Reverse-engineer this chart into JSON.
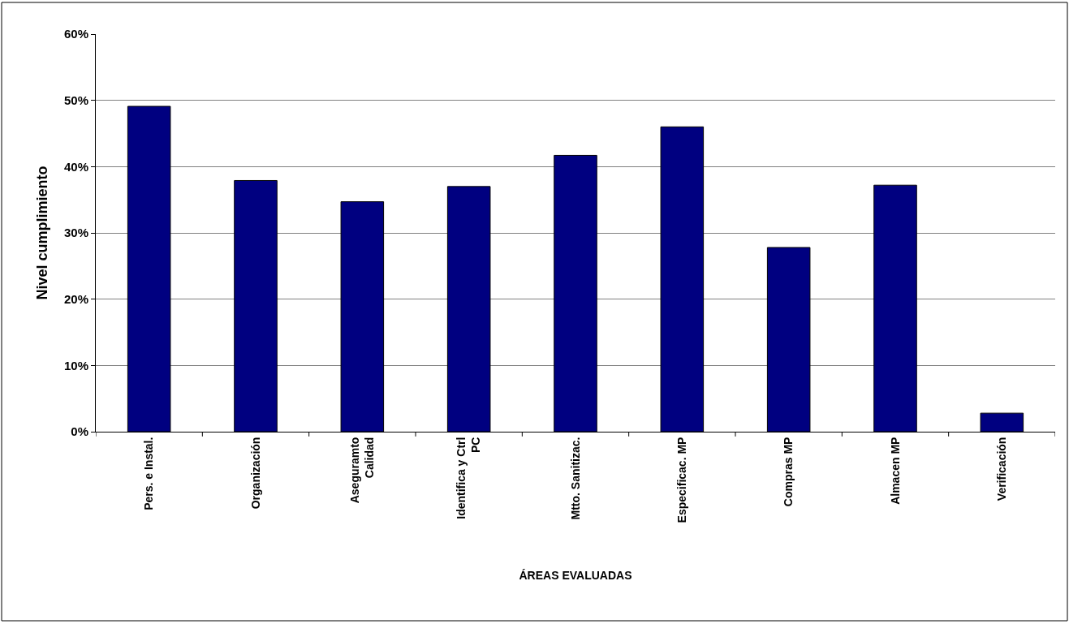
{
  "chart_data": {
    "type": "bar",
    "xlabel": "ÁREAS EVALUADAS",
    "ylabel": "Nivel cumplimiento",
    "categories": [
      "Pers. e Instal.",
      "Organización",
      "Aseguramto Calidad",
      "Identifica y Ctrl PC",
      "Mtto. Sanitizac.",
      "Especificac. MP",
      "Compras MP",
      "Almacen MP",
      "Verificación"
    ],
    "values": [
      49.1,
      37.9,
      34.7,
      37.0,
      41.7,
      46.0,
      27.8,
      37.2,
      2.8
    ],
    "color": "#000080",
    "ylim": [
      0,
      60
    ],
    "yticks": [
      {
        "value": 0,
        "label": "0%"
      },
      {
        "value": 10,
        "label": "10%"
      },
      {
        "value": 20,
        "label": "20%"
      },
      {
        "value": 30,
        "label": "30%"
      },
      {
        "value": 40,
        "label": "40%"
      },
      {
        "value": 50,
        "label": "50%"
      },
      {
        "value": 60,
        "label": "60%"
      }
    ],
    "grid": "y"
  }
}
